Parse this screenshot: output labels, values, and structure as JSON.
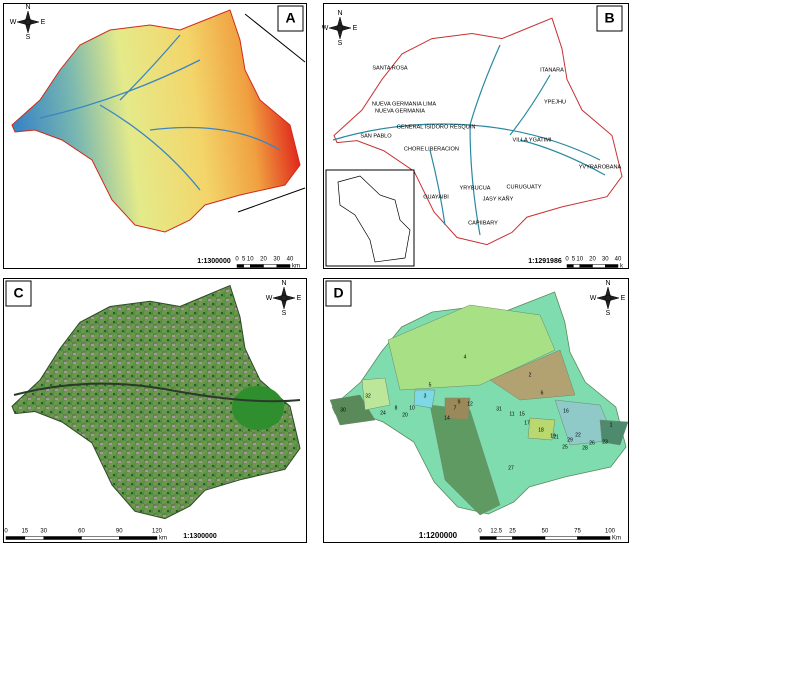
{
  "panels": [
    {
      "label": "A",
      "compass": {
        "n": "N",
        "s": "S",
        "e": "E",
        "w": "W"
      },
      "scale": "1:1300000",
      "scale_bar": {
        "ticks": [
          0,
          5,
          10,
          20,
          30,
          40
        ],
        "unit": "km"
      }
    },
    {
      "label": "B",
      "compass": {
        "n": "N",
        "s": "S",
        "e": "E",
        "w": "W"
      },
      "scale": "1:1291986",
      "scale_bar": {
        "ticks": [
          0,
          5,
          10,
          20,
          30,
          40
        ],
        "unit": "k"
      },
      "places": [
        "SANTA ROSA",
        "NUEVA GERMANIA LIMA",
        "NUEVA GERMANIA",
        "SAN PABLO",
        "GENERAL ISIDORO RESQUIN",
        "CHORE",
        "LIBERACION",
        "ITANARA",
        "YPEJHU",
        "VILLA YGATIMI",
        "YVYRAROBANA",
        "YRYBUCUA",
        "CURUGUATY",
        "GUAYAIBI",
        "JASY KAÑY",
        "CAPIIBARY"
      ]
    },
    {
      "label": "C",
      "compass": {
        "n": "N",
        "s": "S",
        "e": "E",
        "w": "W"
      },
      "scale": "1:1300000",
      "scale_bar": {
        "ticks": [
          0,
          15,
          30,
          60,
          90,
          120
        ],
        "unit": "km"
      }
    },
    {
      "label": "D",
      "compass": {
        "n": "N",
        "s": "S",
        "e": "E",
        "w": "W"
      },
      "scale": "1:1200000",
      "scale_bar": {
        "ticks": [
          0,
          12.5,
          25,
          50,
          75,
          100
        ],
        "unit": "Km"
      },
      "regions": [
        "4",
        "2",
        "6",
        "30",
        "32",
        "24",
        "8",
        "20",
        "3",
        "10",
        "9",
        "7",
        "12",
        "14",
        "31",
        "11",
        "15",
        "16",
        "17",
        "18",
        "19",
        "21",
        "22",
        "23",
        "25",
        "26",
        "28",
        "29",
        "1",
        "5",
        "27"
      ]
    }
  ]
}
